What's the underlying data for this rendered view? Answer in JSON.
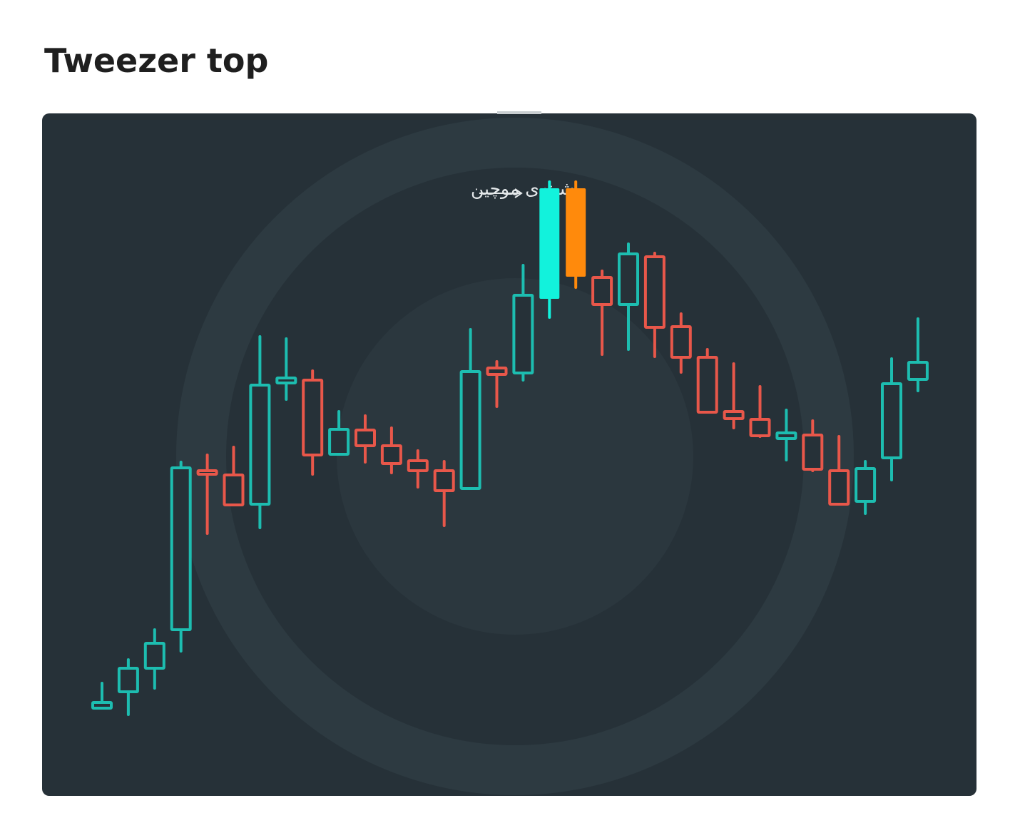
{
  "chart_data": {
    "type": "candlestick",
    "title": "Tweezer top",
    "annotation": "بیشینه‌ی موچین",
    "ylim": [
      0,
      1000
    ],
    "up_color": "#1dbdb0",
    "down_color": "#e8574a",
    "highlights": [
      {
        "index": 17,
        "color": "#12f2dc"
      },
      {
        "index": 18,
        "color": "#ff8a0c"
      }
    ],
    "open": [
      107,
      130,
      163,
      217,
      440,
      434,
      393,
      563,
      567,
      463,
      497,
      475,
      454,
      440,
      415,
      584,
      577,
      682,
      835,
      711,
      673,
      740,
      642,
      599,
      523,
      512,
      485,
      490,
      440,
      397,
      458,
      568
    ],
    "high": [
      142,
      175,
      217,
      452,
      462,
      473,
      628,
      625,
      580,
      523,
      517,
      500,
      468,
      453,
      638,
      593,
      728,
      845,
      845,
      720,
      758,
      745,
      660,
      610,
      590,
      558,
      525,
      510,
      488,
      453,
      597,
      653
    ],
    "low": [
      107,
      98,
      135,
      187,
      352,
      392,
      360,
      540,
      435,
      463,
      452,
      437,
      417,
      363,
      415,
      530,
      567,
      655,
      697,
      603,
      610,
      600,
      578,
      522,
      500,
      488,
      455,
      440,
      393,
      380,
      427,
      552
    ],
    "close": [
      115,
      163,
      198,
      444,
      435,
      392,
      560,
      570,
      462,
      498,
      475,
      450,
      440,
      412,
      579,
      575,
      686,
      835,
      713,
      673,
      744,
      641,
      599,
      522,
      513,
      489,
      493,
      442,
      393,
      443,
      562,
      592
    ]
  }
}
